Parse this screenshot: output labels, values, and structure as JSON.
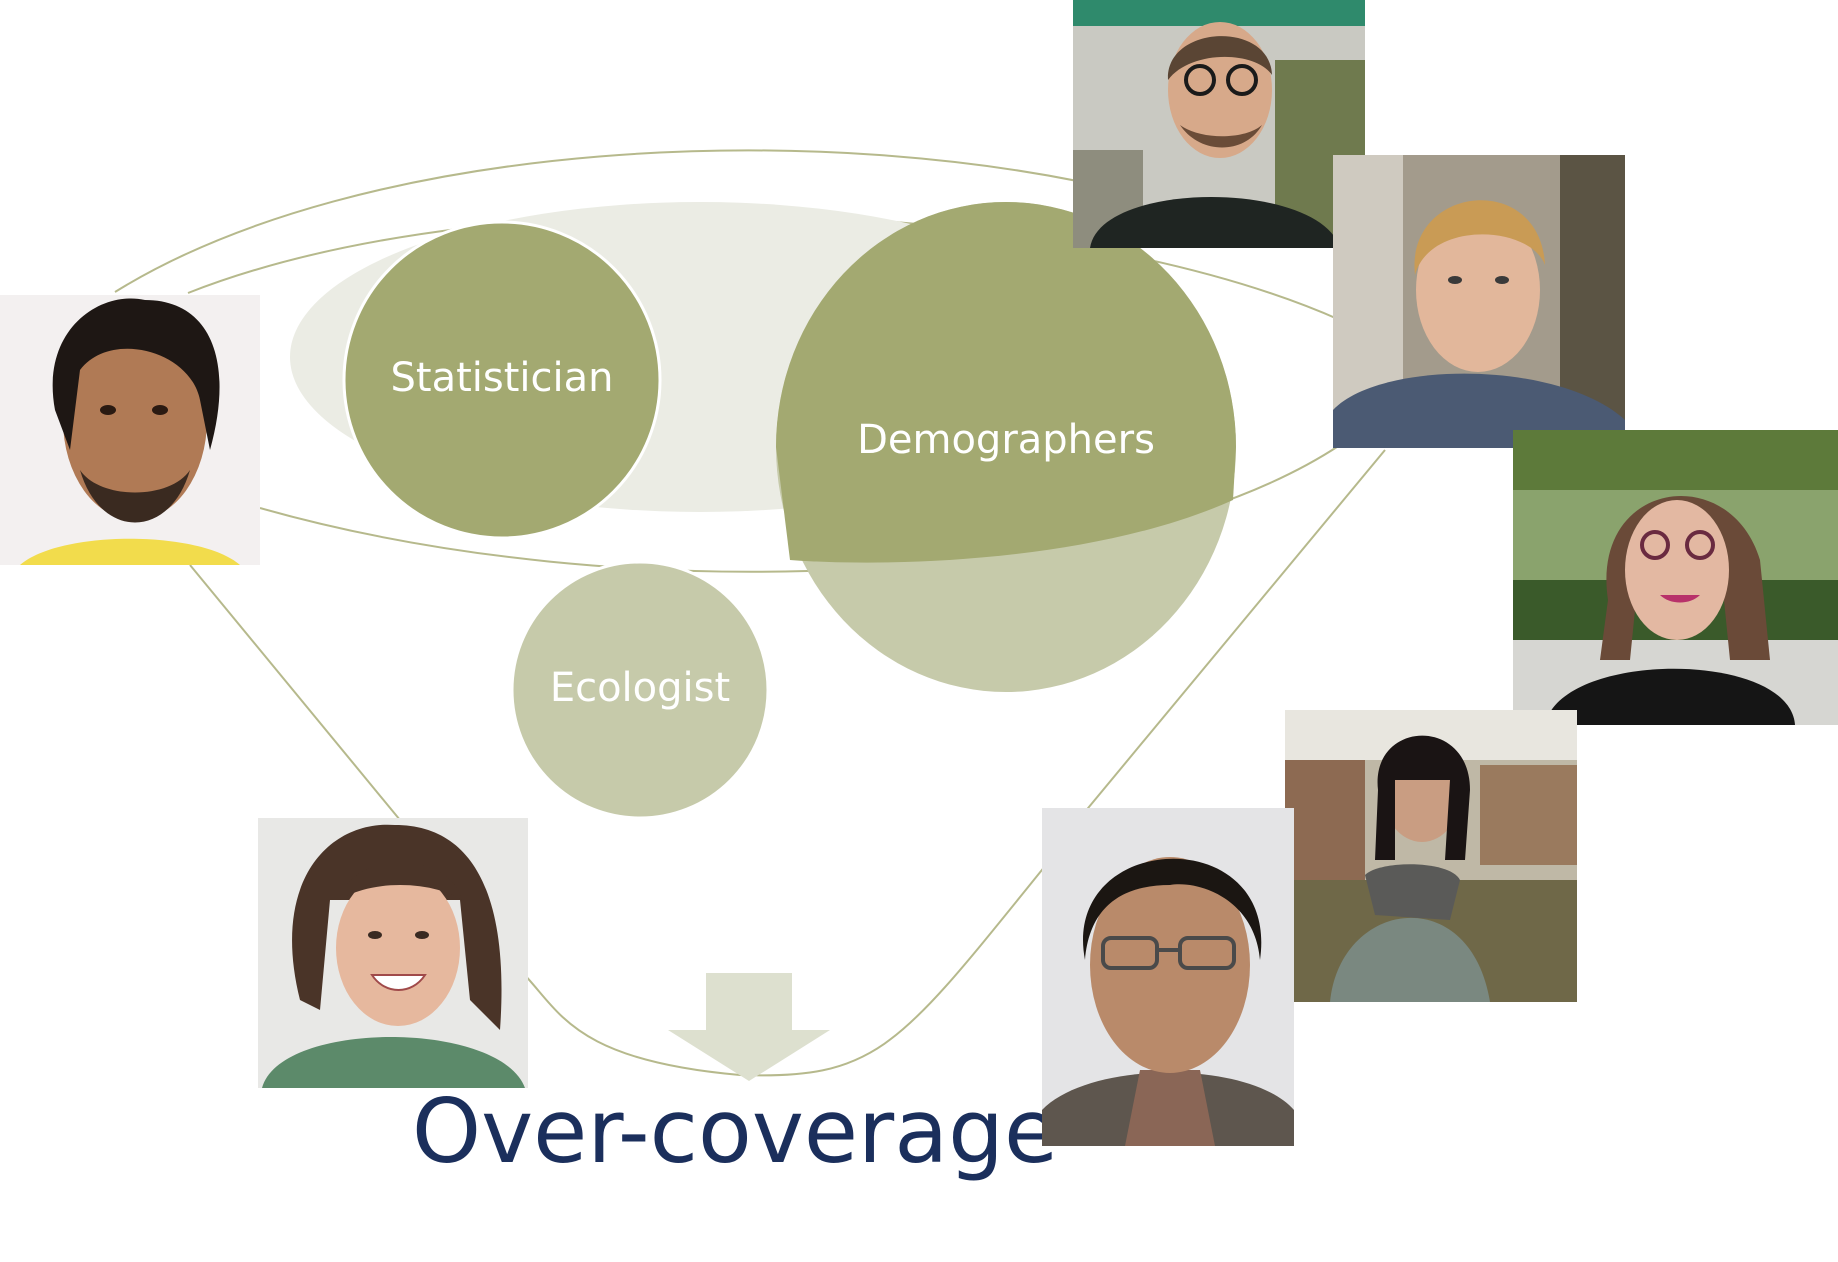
{
  "colors": {
    "dark_olive": "#a3a971",
    "light_olive": "#c6caaa",
    "pale_ellipse": "#ebece4",
    "arrow": "#dde0cf",
    "lines": "#b6b98c",
    "title": "#1b2f5c"
  },
  "circles": {
    "statistician": "Statistician",
    "demographers": "Demographers",
    "ecologist": "Ecologist"
  },
  "title": "Over-coverage",
  "people": [
    {
      "icon": "person-photo-man-dreadlocks-icon"
    },
    {
      "icon": "person-photo-man-glasses-icon"
    },
    {
      "icon": "person-photo-man-blond-icon"
    },
    {
      "icon": "person-photo-woman-glasses-icon"
    },
    {
      "icon": "person-photo-woman-scarf-icon"
    },
    {
      "icon": "person-photo-man-curly-icon"
    },
    {
      "icon": "person-photo-woman-smiling-icon"
    }
  ]
}
